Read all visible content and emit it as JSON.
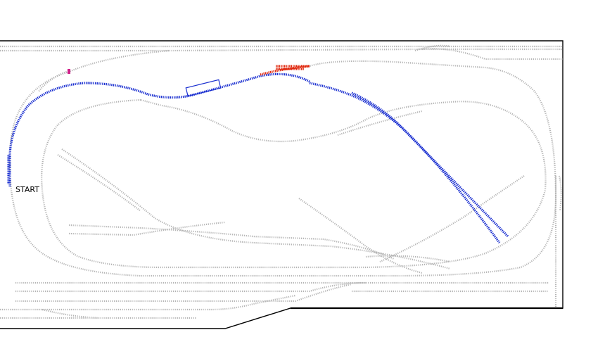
{
  "diagram": {
    "start_label": "START",
    "colors": {
      "background": "#ffffff",
      "inactive_track": "#b4b4b4",
      "selected_route": "#1a2fd0",
      "highlight_segment": "#e0280e",
      "marker": "#d0208a",
      "board_edge": "#000000"
    }
  }
}
